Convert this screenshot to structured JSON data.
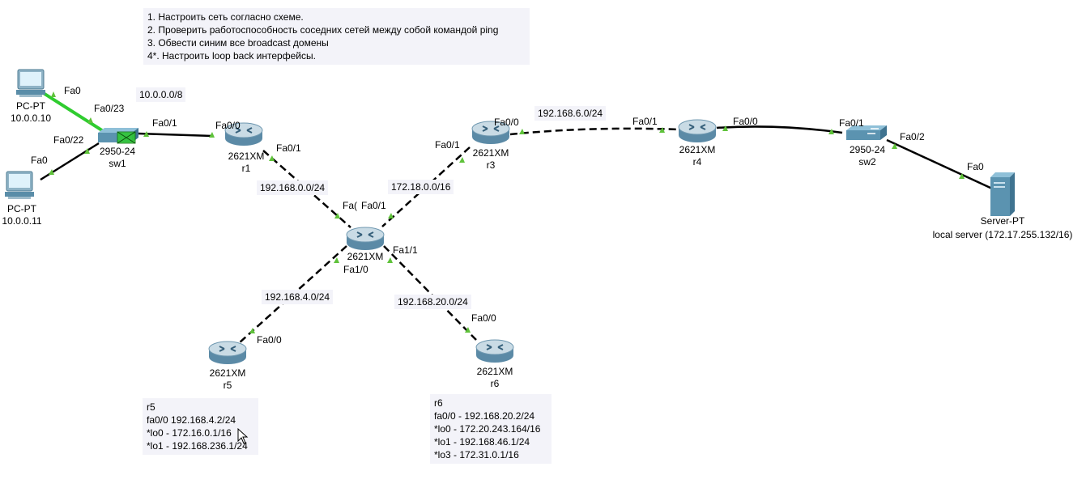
{
  "tasks": [
    "1. Настроить сеть согласно схеме.",
    "2. Проверить работоспособность соседних сетей между собой командой ping",
    "3. Обвести синим все broadcast домены",
    "4*. Настроить loop back интерфейсы."
  ],
  "networks": {
    "lan1": "10.0.0.0/8",
    "r1_hub": "192.168.0.0/24",
    "r3_hub": "172.18.0.0/16",
    "r3_r4": "192.168.6.0/24",
    "r5_hub": "192.168.4.0/24",
    "r6_hub": "192.168.20.0/24"
  },
  "devices": {
    "pc1": {
      "type": "PC-PT",
      "ip": "10.0.0.10"
    },
    "pc2": {
      "type": "PC-PT",
      "ip": "10.0.0.11"
    },
    "sw1": {
      "model": "2950-24",
      "name": "sw1"
    },
    "r1": {
      "model": "2621XM",
      "name": "r1"
    },
    "r3": {
      "model": "2621XM",
      "name": "r3"
    },
    "r4": {
      "model": "2621XM",
      "name": "r4"
    },
    "hub": {
      "model": "2621XM"
    },
    "r5": {
      "model": "2621XM",
      "name": "r5"
    },
    "r6": {
      "model": "2621XM",
      "name": "r6"
    },
    "sw2": {
      "model": "2950-24",
      "name": "sw2"
    },
    "server": {
      "type": "Server-PT",
      "name": "local server (172.17.255.132/16)"
    }
  },
  "ports": {
    "pc1_fa0": "Fa0",
    "sw1_fa023": "Fa0/23",
    "sw1_fa022": "Fa0/22",
    "pc2_fa0": "Fa0",
    "sw1_fa01": "Fa0/1",
    "r1_fa00": "Fa0/0",
    "r1_fa01": "Fa0/1",
    "hub_fa00": "Fa(",
    "hub_fa01": "Fa0/1",
    "r3_fa01": "Fa0/1",
    "r3_fa00": "Fa0/0",
    "r4_fa01": "Fa0/1",
    "r4_fa00": "Fa0/0",
    "sw2_fa01": "Fa0/1",
    "sw2_fa02": "Fa0/2",
    "server_fa0": "Fa0",
    "hub_fa10": "Fa1/0",
    "hub_fa11": "Fa1/1",
    "r5_fa00": "Fa0/0",
    "r6_fa00": "Fa0/0"
  },
  "notes": {
    "r5": [
      "r5",
      "fa0/0 192.168.4.2/24",
      "*lo0 - 172.16.0.1/16",
      "*lo1 - 192.168.236.1/24"
    ],
    "r6": [
      "r6",
      "fa0/0 - 192.168.20.2/24",
      "*lo0 - 172.20.243.164/16",
      "*lo1 - 192.168.46.1/24",
      "*lo3 - 172.31.0.1/16"
    ]
  },
  "colors": {
    "router_light": "#c9dbe5",
    "router_dark": "#5b8aa6",
    "switch": "#5b93b0",
    "port_indicator": "#5fc23a",
    "selected_link": "#2fcc2f",
    "note_bg": "#f3f3f9"
  }
}
